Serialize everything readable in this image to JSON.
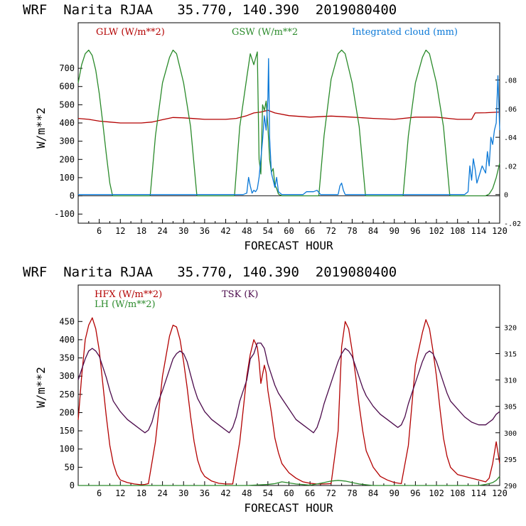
{
  "chart_data": [
    {
      "type": "line",
      "title": "WRF  Narita RJAA   35.770, 140.390  2019080400",
      "xlabel": "FORECAST HOUR",
      "ylabel": "W/m**2",
      "xlim": [
        0,
        120
      ],
      "ylim": [
        -150,
        950
      ],
      "y2lim": [
        -0.02,
        0.12
      ],
      "x_ticks": [
        "6",
        "12",
        "18",
        "24",
        "30",
        "36",
        "42",
        "48",
        "54",
        "60",
        "66",
        "72",
        "78",
        "84",
        "90",
        "96",
        "102",
        "108",
        "114",
        "120"
      ],
      "y_ticks": [
        "-100",
        "0",
        "100",
        "200",
        "300",
        "400",
        "500",
        "600",
        "700"
      ],
      "y2_ticks": [
        "-.02",
        "0",
        ".02",
        ".04",
        ".06",
        ".08"
      ],
      "series": [
        {
          "name": "GLW (W/m**2)",
          "color": "#b30000",
          "axis": "left",
          "x": [
            0,
            3,
            6,
            9,
            12,
            15,
            18,
            21,
            24,
            27,
            30,
            33,
            36,
            39,
            42,
            45,
            48,
            50,
            52,
            54,
            56,
            60,
            66,
            72,
            78,
            84,
            90,
            96,
            102,
            108,
            112,
            113,
            116,
            120
          ],
          "y": [
            425,
            420,
            410,
            405,
            400,
            400,
            400,
            405,
            418,
            430,
            428,
            424,
            420,
            420,
            420,
            425,
            440,
            455,
            460,
            470,
            455,
            440,
            432,
            438,
            432,
            425,
            420,
            432,
            432,
            420,
            420,
            455,
            456,
            460
          ]
        },
        {
          "name": "GSW (W/m**2",
          "color": "#2a8a2a",
          "axis": "left",
          "x": [
            0,
            1,
            2,
            3,
            4,
            5,
            6,
            7,
            8,
            9,
            9.8,
            20.5,
            22,
            24,
            26,
            27,
            28,
            30,
            32,
            33.8,
            44.5,
            46,
            48,
            49,
            50,
            51,
            51.5,
            52,
            52.5,
            53,
            53.5,
            54,
            54.5,
            55,
            55.5,
            56,
            56.5,
            57,
            57.5,
            58,
            68.5,
            70,
            72,
            74,
            75,
            76,
            78,
            80,
            81.8,
            92.5,
            94,
            96,
            98,
            99,
            100,
            102,
            104,
            105.8,
            116,
            117,
            118,
            119,
            120
          ],
          "y": [
            620,
            720,
            780,
            800,
            770,
            690,
            560,
            400,
            230,
            70,
            0,
            0,
            330,
            620,
            760,
            800,
            780,
            620,
            380,
            0,
            0,
            380,
            650,
            780,
            720,
            790,
            200,
            120,
            500,
            470,
            520,
            380,
            200,
            130,
            150,
            60,
            40,
            10,
            5,
            0,
            0,
            330,
            640,
            780,
            800,
            780,
            620,
            380,
            0,
            0,
            330,
            620,
            760,
            800,
            780,
            620,
            380,
            0,
            0,
            10,
            40,
            100,
            180
          ]
        },
        {
          "name": "Integrated cloud (mm)",
          "color": "#0a78d7",
          "axis": "right",
          "x": [
            0,
            47,
            48,
            48.5,
            49,
            49.5,
            50,
            50.5,
            51,
            51.5,
            52,
            52.5,
            53,
            53.5,
            54,
            54.2,
            54.5,
            55,
            55.5,
            56,
            56.5,
            57,
            58,
            64,
            65,
            67,
            68,
            69,
            74,
            74.5,
            75,
            75.5,
            76,
            110,
            111,
            111.5,
            112,
            112.5,
            113,
            113.5,
            114,
            115,
            116,
            116.5,
            117,
            117.5,
            118,
            118.5,
            119,
            119.5,
            120
          ],
          "y": [
            0,
            0,
            0.001,
            0.012,
            0.006,
            0.001,
            0.003,
            0.002,
            0.004,
            0.012,
            0.025,
            0.038,
            0.055,
            0.045,
            0.068,
            0.095,
            0.04,
            0.015,
            0.01,
            0.005,
            0.012,
            0.002,
            0,
            0,
            0.002,
            0.002,
            0.003,
            0,
            0,
            0.006,
            0.008,
            0.003,
            0,
            0,
            0.002,
            0.02,
            0.01,
            0.025,
            0.018,
            0.008,
            0.012,
            0.02,
            0.015,
            0.03,
            0.02,
            0.04,
            0.035,
            0.045,
            0.05,
            0.083,
            0.045
          ]
        }
      ]
    },
    {
      "type": "line",
      "title": "WRF  Narita RJAA   35.770, 140.390  2019080400",
      "xlabel": "FORECAST HOUR",
      "ylabel": "W/m**2",
      "xlim": [
        0,
        120
      ],
      "ylim": [
        0,
        550
      ],
      "y2lim": [
        290,
        328
      ],
      "x_ticks": [
        "6",
        "12",
        "18",
        "24",
        "30",
        "36",
        "42",
        "48",
        "54",
        "60",
        "66",
        "72",
        "78",
        "84",
        "90",
        "96",
        "102",
        "108",
        "114",
        "120"
      ],
      "y_ticks": [
        "0",
        "50",
        "100",
        "150",
        "200",
        "250",
        "300",
        "350",
        "400",
        "450"
      ],
      "y2_ticks": [
        "290",
        "295",
        "300",
        "305",
        "310",
        "315",
        "320"
      ],
      "series": [
        {
          "name": "HFX (W/m**2)",
          "color": "#b30000",
          "axis": "left",
          "x": [
            0,
            1,
            2,
            3,
            4,
            5,
            6,
            7,
            8,
            9,
            10,
            11,
            12,
            14,
            16,
            18,
            19,
            20,
            22,
            24,
            26,
            27,
            28,
            29,
            30,
            31,
            32,
            33,
            34,
            35,
            36,
            38,
            40,
            42,
            44,
            46,
            48,
            49,
            50,
            51,
            51.5,
            52,
            53,
            53.5,
            54,
            55,
            56,
            57,
            58,
            60,
            62,
            64,
            66,
            68,
            70,
            72,
            74,
            75,
            76,
            77,
            78,
            79,
            80,
            81,
            82,
            84,
            86,
            88,
            90,
            92,
            94,
            96,
            98,
            99,
            100,
            101,
            102,
            103,
            104,
            105,
            106,
            108,
            110,
            112,
            114,
            116,
            117,
            118,
            119,
            120
          ],
          "y": [
            180,
            300,
            400,
            440,
            460,
            430,
            370,
            280,
            190,
            110,
            60,
            30,
            15,
            8,
            4,
            2,
            3,
            5,
            120,
            300,
            410,
            440,
            435,
            400,
            340,
            270,
            190,
            120,
            70,
            40,
            25,
            12,
            6,
            4,
            4,
            120,
            300,
            360,
            400,
            380,
            340,
            280,
            330,
            310,
            260,
            200,
            130,
            90,
            60,
            35,
            20,
            10,
            6,
            4,
            4,
            5,
            150,
            380,
            450,
            430,
            370,
            300,
            220,
            150,
            95,
            50,
            25,
            15,
            8,
            5,
            110,
            330,
            420,
            455,
            430,
            370,
            300,
            210,
            130,
            80,
            50,
            30,
            25,
            20,
            15,
            10,
            20,
            60,
            120,
            60
          ]
        },
        {
          "name": "LH  (W/m**2)",
          "color": "#2a8a2a",
          "axis": "left",
          "x": [
            0,
            48,
            50,
            52,
            54,
            56,
            58,
            60,
            62,
            66,
            68,
            70,
            72,
            74,
            76,
            78,
            80,
            82,
            84,
            96,
            114,
            116,
            117,
            118,
            119,
            120
          ],
          "y": [
            0,
            0,
            1,
            2,
            3,
            5,
            10,
            7,
            4,
            1,
            4,
            8,
            12,
            14,
            12,
            8,
            4,
            2,
            0,
            0,
            0,
            3,
            5,
            8,
            14,
            25
          ]
        },
        {
          "name": "TSK (K)",
          "color": "#4b0a4b",
          "axis": "right",
          "x": [
            0,
            1,
            2,
            3,
            4,
            5,
            6,
            7,
            8,
            9,
            10,
            12,
            14,
            16,
            18,
            19,
            20,
            21,
            22,
            24,
            26,
            27,
            28,
            29,
            30,
            31,
            32,
            33,
            34,
            36,
            38,
            40,
            42,
            43,
            44,
            45,
            46,
            48,
            49,
            50,
            51,
            52,
            53,
            54,
            55,
            56,
            57,
            58,
            60,
            62,
            64,
            66,
            67,
            68,
            69,
            70,
            72,
            74,
            75,
            76,
            77,
            78,
            79,
            80,
            81,
            82,
            84,
            86,
            88,
            90,
            91,
            92,
            93,
            94,
            96,
            98,
            99,
            100,
            101,
            102,
            103,
            104,
            105,
            106,
            108,
            110,
            112,
            114,
            116,
            117,
            118,
            119,
            120
          ],
          "y": [
            310,
            312,
            314,
            315.5,
            316,
            315.5,
            314.5,
            312.5,
            310.5,
            308,
            306,
            304,
            302.5,
            301.5,
            300.5,
            300,
            300.5,
            302,
            304.5,
            308,
            312,
            314,
            315,
            315.5,
            315,
            313.5,
            311,
            308.5,
            306.5,
            304,
            302.5,
            301.5,
            300.5,
            300,
            301,
            303,
            306,
            310,
            314,
            315,
            317,
            317,
            316,
            313,
            311,
            309,
            307.5,
            306.5,
            304.5,
            302.5,
            301.5,
            300.5,
            300,
            301,
            303,
            305.5,
            309.5,
            313.5,
            315,
            316,
            315.5,
            314.5,
            312.5,
            310.5,
            308.5,
            307,
            305,
            303.5,
            302.5,
            301.5,
            301,
            301.5,
            303,
            305.5,
            309.5,
            313.5,
            315,
            315.5,
            315,
            313.5,
            311.5,
            309.5,
            307.5,
            306,
            304.5,
            303,
            302,
            301.5,
            301.5,
            302,
            302.5,
            303.5,
            304
          ]
        }
      ]
    }
  ]
}
